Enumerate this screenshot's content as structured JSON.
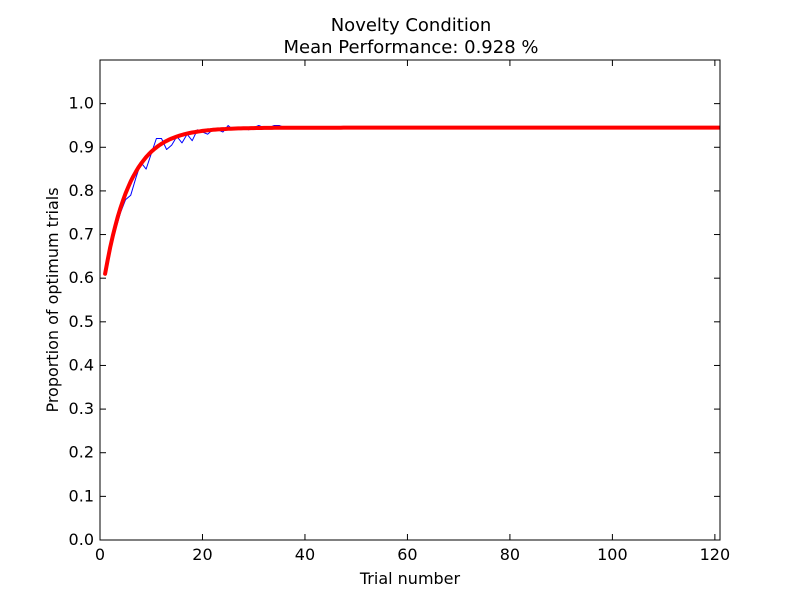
{
  "chart_data": {
    "type": "line",
    "title": "Novelty Condition",
    "subtitle": "Mean Performance: 0.928 %",
    "xlabel": "Trial number",
    "ylabel": "Proportion of optimum trials",
    "xlim": [
      0,
      121
    ],
    "ylim": [
      0,
      1.1
    ],
    "xticks": [
      0,
      20,
      40,
      60,
      80,
      100,
      120
    ],
    "yticks": [
      0.0,
      0.1,
      0.2,
      0.3,
      0.4,
      0.5,
      0.6,
      0.7,
      0.8,
      0.9,
      1.0
    ],
    "grid": false,
    "series": [
      {
        "style": "observed",
        "color": "#0000ff",
        "x": [
          1,
          2,
          3,
          4,
          5,
          6,
          7,
          8,
          9,
          10,
          11,
          12,
          13,
          14,
          15,
          16,
          17,
          18,
          19,
          20,
          21,
          22,
          23,
          24,
          25,
          26,
          27,
          28,
          29,
          30,
          31,
          32,
          33,
          34,
          35,
          36,
          37,
          38,
          39,
          40,
          41,
          42
        ],
        "y": [
          0.61,
          0.66,
          0.71,
          0.75,
          0.78,
          0.79,
          0.83,
          0.865,
          0.85,
          0.885,
          0.92,
          0.92,
          0.895,
          0.905,
          0.925,
          0.91,
          0.93,
          0.915,
          0.94,
          0.935,
          0.93,
          0.94,
          0.94,
          0.935,
          0.95,
          0.94,
          0.945,
          0.945,
          0.94,
          0.945,
          0.95,
          0.945,
          0.945,
          0.95,
          0.95,
          0.945,
          0.945,
          0.945,
          0.945,
          0.945,
          0.945,
          0.945
        ]
      },
      {
        "style": "fitted",
        "color": "#ff0000",
        "model": "exponential",
        "x_range": [
          1,
          121
        ],
        "asymptote": 0.945,
        "start": 0.61,
        "rate": 0.2
      }
    ]
  }
}
